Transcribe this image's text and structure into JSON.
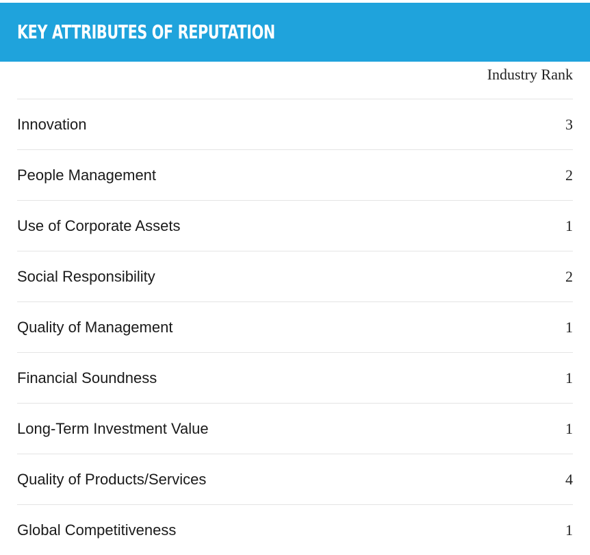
{
  "header": {
    "title": "KEY ATTRIBUTES OF REPUTATION"
  },
  "table": {
    "column_header": "Industry Rank",
    "rows": [
      {
        "attribute": "Innovation",
        "rank": "3"
      },
      {
        "attribute": "People Management",
        "rank": "2"
      },
      {
        "attribute": "Use of Corporate Assets",
        "rank": "1"
      },
      {
        "attribute": "Social Responsibility",
        "rank": "2"
      },
      {
        "attribute": "Quality of Management",
        "rank": "1"
      },
      {
        "attribute": "Financial Soundness",
        "rank": "1"
      },
      {
        "attribute": "Long-Term Investment Value",
        "rank": "1"
      },
      {
        "attribute": "Quality of Products/Services",
        "rank": "4"
      },
      {
        "attribute": "Global Competitiveness",
        "rank": "1"
      }
    ]
  },
  "colors": {
    "banner": "#1fa3dc",
    "title_text": "#ffffff",
    "divider": "#e4e4e4"
  }
}
